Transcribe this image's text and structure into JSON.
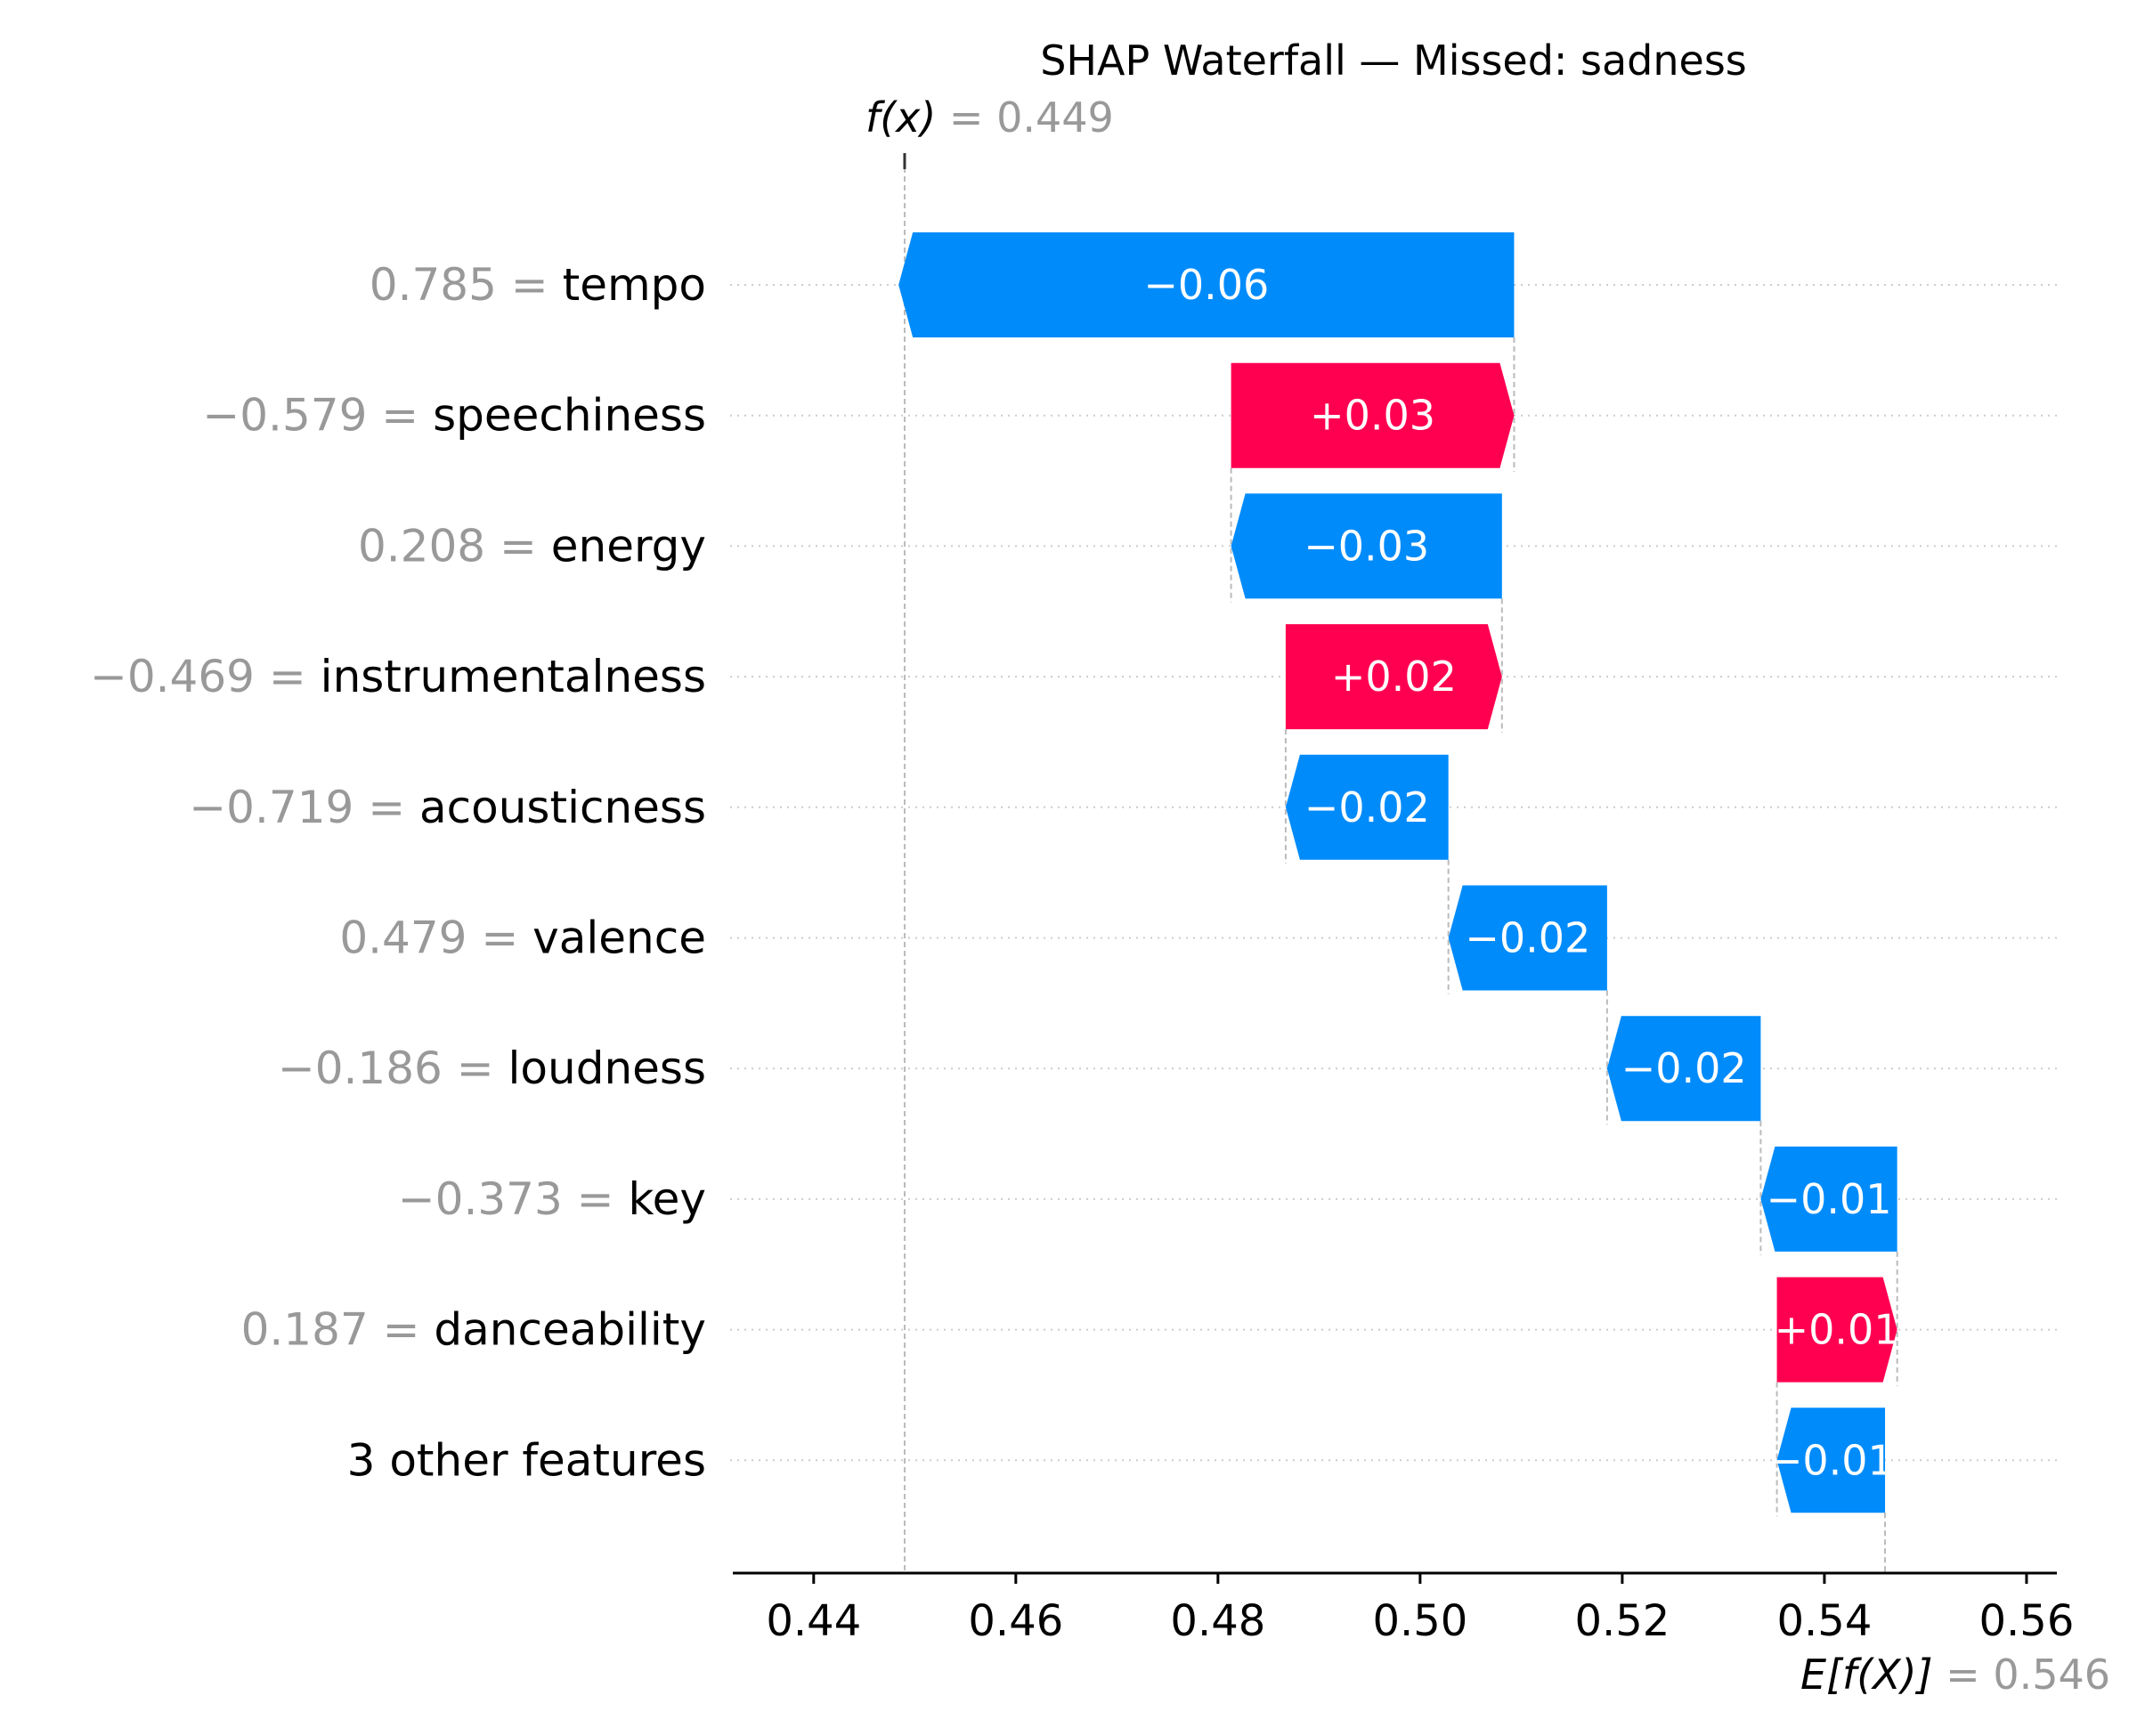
{
  "chart_data": {
    "type": "waterfall",
    "title": "SHAP Waterfall — Missed: sadness",
    "fx": {
      "label": "f(x)",
      "value": 0.449,
      "value_text": "0.449"
    },
    "ex": {
      "label": "E[f(X)]",
      "value": 0.546,
      "value_text": "0.546"
    },
    "xlim": [
      0.432,
      0.563
    ],
    "xticks": [
      0.44,
      0.46,
      0.48,
      0.5,
      0.52,
      0.54,
      0.56
    ],
    "xtick_labels": [
      "0.44",
      "0.46",
      "0.48",
      "0.50",
      "0.52",
      "0.54",
      "0.56"
    ],
    "grid": "horizontal dotted",
    "colors": {
      "positive": "#ff0051",
      "negative": "#008bfb",
      "feature_value": "#999999"
    },
    "features": [
      {
        "value_text": "0.785",
        "name": "tempo",
        "shap": -0.0609,
        "shap_text": "−0.06"
      },
      {
        "value_text": "−0.579",
        "name": "speechiness",
        "shap": 0.028,
        "shap_text": "+0.03"
      },
      {
        "value_text": "0.208",
        "name": "energy",
        "shap": -0.0268,
        "shap_text": "−0.03"
      },
      {
        "value_text": "−0.469",
        "name": "instrumentalness",
        "shap": 0.0214,
        "shap_text": "+0.02"
      },
      {
        "value_text": "−0.719",
        "name": "acousticness",
        "shap": -0.0161,
        "shap_text": "−0.02"
      },
      {
        "value_text": "0.479",
        "name": "valence",
        "shap": -0.0157,
        "shap_text": "−0.02"
      },
      {
        "value_text": "−0.186",
        "name": "loudness",
        "shap": -0.0152,
        "shap_text": "−0.02"
      },
      {
        "value_text": "−0.373",
        "name": "key",
        "shap": -0.0135,
        "shap_text": "−0.01"
      },
      {
        "value_text": "0.187",
        "name": "danceability",
        "shap": 0.0119,
        "shap_text": "+0.01"
      },
      {
        "value_text": "",
        "name": "3 other features",
        "shap": -0.0107,
        "shap_text": "−0.01"
      }
    ]
  }
}
